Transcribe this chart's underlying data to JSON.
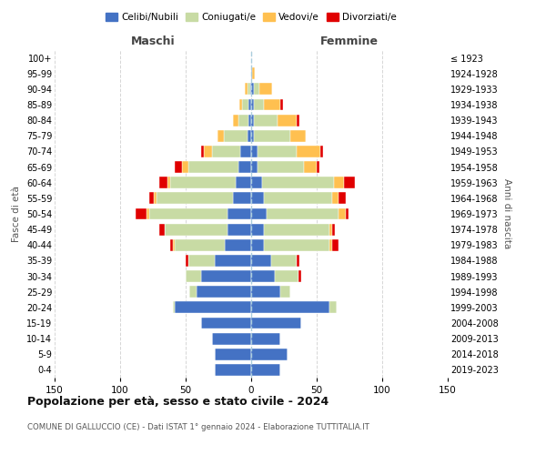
{
  "age_groups": [
    "0-4",
    "5-9",
    "10-14",
    "15-19",
    "20-24",
    "25-29",
    "30-34",
    "35-39",
    "40-44",
    "45-49",
    "50-54",
    "55-59",
    "60-64",
    "65-69",
    "70-74",
    "75-79",
    "80-84",
    "85-89",
    "90-94",
    "95-99",
    "100+"
  ],
  "birth_years": [
    "2019-2023",
    "2014-2018",
    "2009-2013",
    "2004-2008",
    "1999-2003",
    "1994-1998",
    "1989-1993",
    "1984-1988",
    "1979-1983",
    "1974-1978",
    "1969-1973",
    "1964-1968",
    "1959-1963",
    "1954-1958",
    "1949-1953",
    "1944-1948",
    "1939-1943",
    "1934-1938",
    "1929-1933",
    "1924-1928",
    "≤ 1923"
  ],
  "maschi": {
    "celibi": [
      28,
      28,
      30,
      38,
      58,
      42,
      38,
      28,
      20,
      18,
      18,
      14,
      12,
      10,
      8,
      3,
      2,
      2,
      1,
      0,
      0
    ],
    "coniugati": [
      0,
      0,
      0,
      0,
      2,
      5,
      12,
      20,
      38,
      48,
      60,
      58,
      50,
      38,
      22,
      18,
      8,
      5,
      2,
      0,
      0
    ],
    "vedovi": [
      0,
      0,
      0,
      0,
      0,
      0,
      0,
      0,
      2,
      0,
      2,
      2,
      2,
      5,
      6,
      5,
      4,
      2,
      2,
      0,
      0
    ],
    "divorziati": [
      0,
      0,
      0,
      0,
      0,
      0,
      0,
      2,
      2,
      4,
      8,
      4,
      6,
      5,
      2,
      0,
      0,
      0,
      0,
      0,
      0
    ]
  },
  "femmine": {
    "nubili": [
      22,
      28,
      22,
      38,
      60,
      22,
      18,
      15,
      10,
      10,
      12,
      10,
      8,
      5,
      5,
      2,
      2,
      2,
      2,
      1,
      0
    ],
    "coniugate": [
      0,
      0,
      0,
      0,
      5,
      8,
      18,
      20,
      50,
      50,
      55,
      52,
      55,
      35,
      30,
      28,
      18,
      8,
      4,
      0,
      0
    ],
    "vedove": [
      0,
      0,
      0,
      0,
      0,
      0,
      0,
      0,
      2,
      2,
      5,
      5,
      8,
      10,
      18,
      12,
      15,
      12,
      10,
      2,
      0
    ],
    "divorziate": [
      0,
      0,
      0,
      0,
      0,
      0,
      2,
      2,
      5,
      2,
      2,
      5,
      8,
      2,
      2,
      0,
      2,
      2,
      0,
      0,
      0
    ]
  },
  "colors": {
    "celibi": "#4472c4",
    "coniugati": "#c8dba4",
    "vedovi": "#ffc050",
    "divorziati": "#e00000"
  },
  "xlim": 150,
  "title": "Popolazione per età, sesso e stato civile - 2024",
  "subtitle": "COMUNE DI GALLUCCIO (CE) - Dati ISTAT 1° gennaio 2024 - Elaborazione TUTTITALIA.IT",
  "xlabel_left": "Maschi",
  "xlabel_right": "Femmine",
  "ylabel_left": "Fasce di età",
  "ylabel_right": "Anni di nascita",
  "legend_labels": [
    "Celibi/Nubili",
    "Coniugati/e",
    "Vedovi/e",
    "Divorziati/e"
  ],
  "background_color": "#ffffff"
}
